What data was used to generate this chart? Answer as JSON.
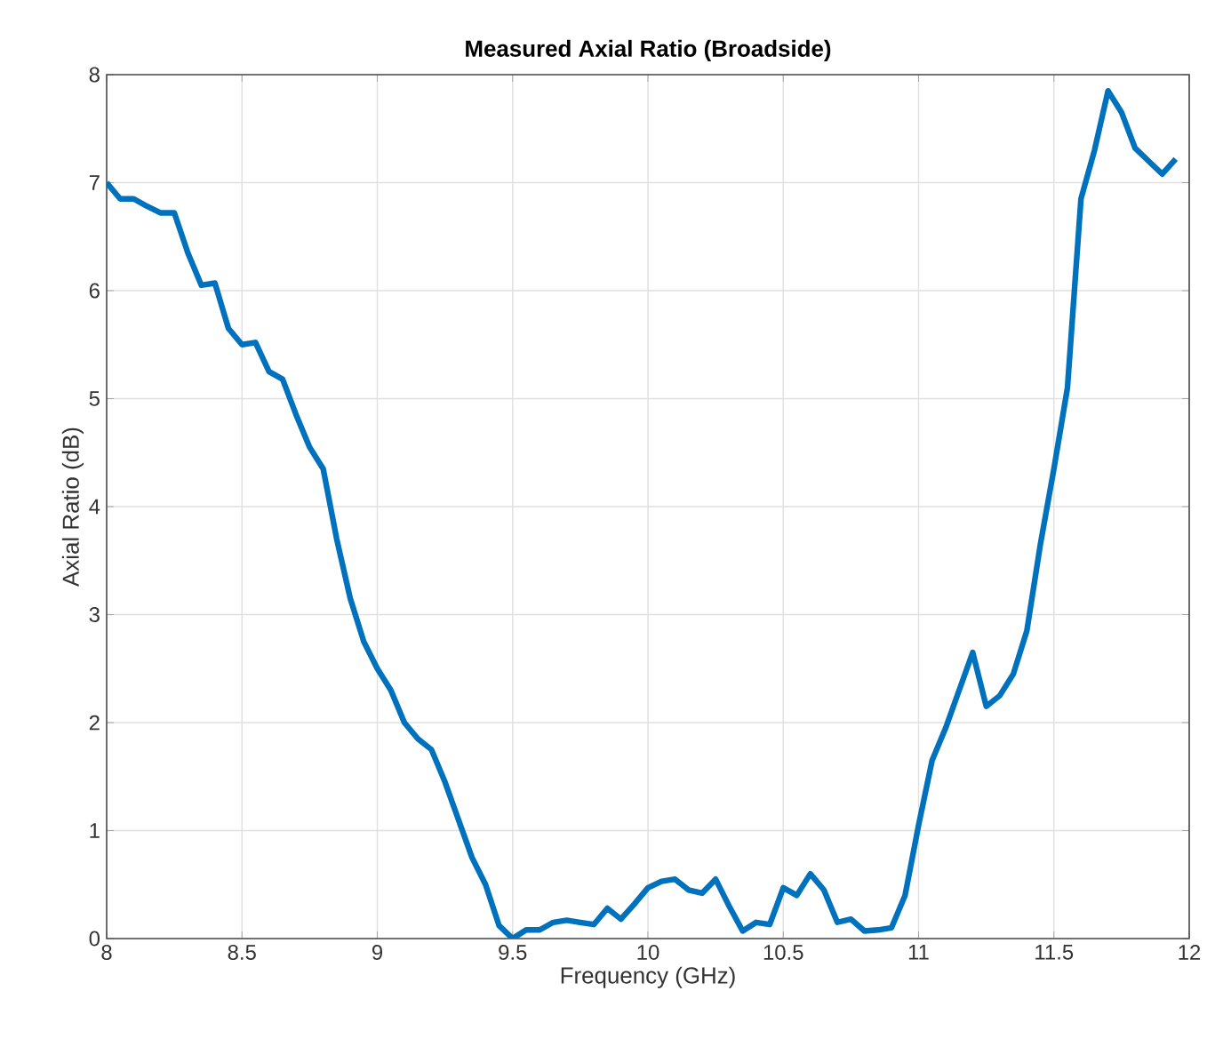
{
  "chart_data": {
    "type": "line",
    "title": "Measured Axial Ratio (Broadside)",
    "xlabel": "Frequency (GHz)",
    "ylabel": "Axial Ratio (dB)",
    "x": [
      8.0,
      8.05,
      8.1,
      8.15,
      8.2,
      8.25,
      8.3,
      8.35,
      8.4,
      8.45,
      8.5,
      8.55,
      8.6,
      8.65,
      8.7,
      8.75,
      8.8,
      8.85,
      8.9,
      8.95,
      9.0,
      9.05,
      9.1,
      9.15,
      9.2,
      9.25,
      9.3,
      9.35,
      9.4,
      9.45,
      9.5,
      9.55,
      9.6,
      9.65,
      9.7,
      9.75,
      9.8,
      9.85,
      9.9,
      9.95,
      10.0,
      10.05,
      10.1,
      10.15,
      10.2,
      10.25,
      10.3,
      10.35,
      10.4,
      10.45,
      10.5,
      10.55,
      10.6,
      10.65,
      10.7,
      10.75,
      10.8,
      10.85,
      10.9,
      10.95,
      11.0,
      11.05,
      11.1,
      11.15,
      11.2,
      11.25,
      11.3,
      11.35,
      11.4,
      11.45,
      11.5,
      11.55,
      11.6,
      11.65,
      11.7,
      11.75,
      11.8,
      11.85,
      11.9,
      11.95
    ],
    "series": [
      {
        "color": "#0072bd",
        "values": [
          7.0,
          6.85,
          6.85,
          6.78,
          6.72,
          6.72,
          6.35,
          6.05,
          6.07,
          5.65,
          5.5,
          5.52,
          5.25,
          5.18,
          4.85,
          4.55,
          4.35,
          3.7,
          3.15,
          2.75,
          2.5,
          2.3,
          2.0,
          1.85,
          1.75,
          1.45,
          1.1,
          0.75,
          0.5,
          0.12,
          0.0,
          0.08,
          0.08,
          0.15,
          0.17,
          0.15,
          0.13,
          0.28,
          0.18,
          0.32,
          0.47,
          0.53,
          0.55,
          0.45,
          0.42,
          0.55,
          0.3,
          0.07,
          0.15,
          0.13,
          0.47,
          0.4,
          0.6,
          0.45,
          0.15,
          0.18,
          0.07,
          0.08,
          0.1,
          0.4,
          1.05,
          1.65,
          1.95,
          2.3,
          2.65,
          2.15,
          2.25,
          2.45,
          2.85,
          3.65,
          4.35,
          5.1,
          6.85,
          7.3,
          7.85,
          7.65,
          7.32,
          7.2,
          7.08,
          7.22
        ]
      }
    ],
    "xlim": [
      8,
      12
    ],
    "ylim": [
      0,
      8
    ],
    "xticks": [
      8,
      8.5,
      9,
      9.5,
      10,
      10.5,
      11,
      11.5,
      12
    ],
    "yticks": [
      0,
      1,
      2,
      3,
      4,
      5,
      6,
      7,
      8
    ],
    "grid": true,
    "marker": "none",
    "line_style": "solid"
  }
}
